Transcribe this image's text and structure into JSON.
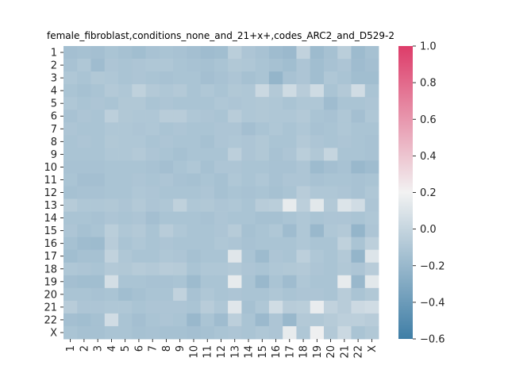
{
  "chart_data": {
    "type": "heatmap",
    "title": "female_fibroblast,conditions_none_and_21+x+,codes_ARC2_and_D529-2",
    "xlabel": "",
    "ylabel": "",
    "x_categories": [
      "1",
      "2",
      "3",
      "4",
      "5",
      "6",
      "7",
      "8",
      "9",
      "10",
      "11",
      "12",
      "13",
      "14",
      "15",
      "16",
      "17",
      "18",
      "19",
      "20",
      "21",
      "22",
      "X"
    ],
    "y_categories": [
      "1",
      "2",
      "3",
      "4",
      "5",
      "6",
      "7",
      "8",
      "9",
      "10",
      "11",
      "12",
      "13",
      "14",
      "15",
      "16",
      "17",
      "18",
      "19",
      "20",
      "21",
      "22",
      "X"
    ],
    "colorbar": {
      "vmin": -0.6,
      "vmax": 1.0,
      "ticks": [
        "1.0",
        "0.8",
        "0.6",
        "0.4",
        "0.2",
        "0.0",
        "−0.2",
        "−0.4",
        "−0.6"
      ],
      "tick_values": [
        1.0,
        0.8,
        0.6,
        0.4,
        0.2,
        0.0,
        -0.2,
        -0.4,
        -0.6
      ],
      "colors": {
        "low": "#3f7ea6",
        "mid": "#f2f2f2",
        "high": "#dd3c69"
      }
    },
    "values": [
      [
        -0.15,
        -0.14,
        -0.15,
        -0.12,
        -0.14,
        -0.16,
        -0.13,
        -0.12,
        -0.13,
        -0.15,
        -0.17,
        -0.16,
        -0.05,
        -0.11,
        -0.13,
        -0.17,
        -0.19,
        -0.02,
        -0.18,
        -0.14,
        -0.05,
        -0.18,
        -0.14
      ],
      [
        -0.13,
        -0.1,
        -0.17,
        -0.11,
        -0.12,
        -0.11,
        -0.1,
        -0.1,
        -0.12,
        -0.13,
        -0.14,
        -0.12,
        -0.09,
        -0.1,
        -0.12,
        -0.14,
        -0.16,
        -0.11,
        -0.16,
        -0.13,
        -0.11,
        -0.17,
        -0.15
      ],
      [
        -0.1,
        -0.12,
        -0.09,
        -0.1,
        -0.12,
        -0.11,
        -0.12,
        -0.13,
        -0.12,
        -0.12,
        -0.15,
        -0.13,
        -0.11,
        -0.14,
        -0.12,
        -0.22,
        -0.13,
        -0.11,
        -0.16,
        -0.1,
        -0.12,
        -0.16,
        -0.16
      ],
      [
        -0.12,
        -0.14,
        -0.12,
        -0.08,
        -0.1,
        -0.03,
        -0.08,
        -0.1,
        -0.08,
        -0.12,
        -0.1,
        -0.12,
        -0.09,
        -0.1,
        0.02,
        -0.08,
        0.04,
        -0.06,
        0.04,
        -0.12,
        -0.08,
        0.05,
        -0.12
      ],
      [
        -0.1,
        -0.12,
        -0.11,
        -0.12,
        -0.09,
        -0.09,
        -0.12,
        -0.11,
        -0.12,
        -0.12,
        -0.12,
        -0.1,
        -0.11,
        -0.1,
        -0.09,
        -0.1,
        -0.12,
        -0.1,
        -0.1,
        -0.17,
        -0.12,
        -0.12,
        -0.11
      ],
      [
        -0.13,
        -0.11,
        -0.12,
        -0.04,
        -0.09,
        -0.1,
        -0.1,
        -0.06,
        -0.06,
        -0.1,
        -0.11,
        -0.12,
        -0.06,
        -0.1,
        -0.09,
        -0.1,
        -0.1,
        -0.08,
        -0.12,
        -0.13,
        -0.1,
        -0.15,
        -0.1
      ],
      [
        -0.11,
        -0.12,
        -0.12,
        -0.1,
        -0.1,
        -0.11,
        -0.1,
        -0.12,
        -0.11,
        -0.12,
        -0.12,
        -0.11,
        -0.11,
        -0.15,
        -0.12,
        -0.1,
        -0.12,
        -0.1,
        -0.13,
        -0.12,
        -0.1,
        -0.12,
        -0.12
      ],
      [
        -0.12,
        -0.11,
        -0.12,
        -0.09,
        -0.1,
        -0.1,
        -0.12,
        -0.11,
        -0.12,
        -0.12,
        -0.14,
        -0.11,
        -0.1,
        -0.11,
        -0.09,
        -0.12,
        -0.12,
        -0.08,
        -0.11,
        -0.12,
        -0.11,
        -0.12,
        -0.13
      ],
      [
        -0.12,
        -0.12,
        -0.12,
        -0.1,
        -0.1,
        -0.08,
        -0.11,
        -0.12,
        -0.14,
        -0.12,
        -0.12,
        -0.12,
        -0.04,
        -0.11,
        -0.09,
        -0.13,
        -0.11,
        -0.05,
        -0.09,
        0.0,
        -0.12,
        -0.12,
        -0.13
      ],
      [
        -0.13,
        -0.13,
        -0.13,
        -0.12,
        -0.12,
        -0.12,
        -0.13,
        -0.15,
        -0.12,
        -0.1,
        -0.14,
        -0.11,
        -0.11,
        -0.12,
        -0.12,
        -0.13,
        -0.13,
        -0.11,
        -0.18,
        -0.15,
        -0.13,
        -0.2,
        -0.17
      ],
      [
        -0.12,
        -0.15,
        -0.15,
        -0.12,
        -0.12,
        -0.11,
        -0.12,
        -0.11,
        -0.13,
        -0.14,
        -0.12,
        -0.14,
        -0.1,
        -0.12,
        -0.1,
        -0.13,
        -0.11,
        -0.11,
        -0.13,
        -0.12,
        -0.12,
        -0.13,
        -0.12
      ],
      [
        -0.14,
        -0.13,
        -0.13,
        -0.12,
        -0.12,
        -0.1,
        -0.11,
        -0.12,
        -0.12,
        -0.12,
        -0.11,
        -0.14,
        -0.12,
        -0.13,
        -0.12,
        -0.14,
        -0.12,
        -0.06,
        -0.1,
        -0.1,
        -0.11,
        -0.13,
        -0.1
      ],
      [
        -0.07,
        -0.1,
        -0.1,
        -0.09,
        -0.11,
        -0.08,
        -0.11,
        -0.1,
        -0.03,
        -0.1,
        -0.09,
        -0.11,
        -0.1,
        -0.12,
        -0.06,
        -0.05,
        0.15,
        -0.04,
        0.13,
        -0.08,
        0.1,
        0.05,
        -0.11
      ],
      [
        -0.12,
        -0.12,
        -0.13,
        -0.11,
        -0.12,
        -0.11,
        -0.15,
        -0.12,
        -0.12,
        -0.12,
        -0.13,
        -0.11,
        -0.12,
        -0.12,
        -0.14,
        -0.14,
        -0.12,
        -0.1,
        -0.12,
        -0.11,
        -0.11,
        -0.12,
        -0.1
      ],
      [
        -0.11,
        -0.14,
        -0.12,
        -0.05,
        -0.1,
        -0.08,
        -0.12,
        -0.06,
        -0.1,
        -0.12,
        -0.12,
        -0.11,
        -0.07,
        -0.14,
        -0.12,
        -0.1,
        -0.17,
        -0.1,
        -0.2,
        -0.1,
        -0.08,
        -0.22,
        -0.11
      ],
      [
        -0.14,
        -0.17,
        -0.18,
        -0.06,
        -0.12,
        -0.1,
        -0.12,
        -0.11,
        -0.12,
        -0.12,
        -0.12,
        -0.1,
        -0.11,
        -0.13,
        -0.12,
        -0.12,
        -0.12,
        -0.1,
        -0.12,
        -0.12,
        -0.03,
        -0.12,
        -0.04
      ],
      [
        -0.16,
        -0.14,
        -0.14,
        -0.02,
        -0.1,
        -0.12,
        -0.12,
        -0.1,
        -0.11,
        -0.14,
        -0.12,
        -0.12,
        0.12,
        -0.12,
        -0.18,
        -0.11,
        -0.12,
        -0.04,
        -0.1,
        -0.12,
        -0.08,
        -0.22,
        0.1
      ],
      [
        -0.1,
        -0.11,
        -0.12,
        -0.08,
        -0.09,
        -0.07,
        -0.08,
        -0.06,
        -0.07,
        -0.12,
        -0.1,
        -0.1,
        -0.08,
        -0.11,
        -0.12,
        -0.1,
        -0.09,
        -0.08,
        -0.11,
        -0.12,
        -0.09,
        -0.11,
        -0.06
      ],
      [
        -0.15,
        -0.16,
        -0.16,
        0.06,
        -0.12,
        -0.12,
        -0.13,
        -0.13,
        -0.12,
        -0.18,
        -0.12,
        -0.12,
        0.15,
        -0.12,
        -0.2,
        -0.12,
        -0.17,
        -0.1,
        -0.12,
        -0.12,
        0.15,
        -0.2,
        0.13
      ],
      [
        -0.12,
        -0.12,
        -0.13,
        -0.12,
        -0.16,
        -0.14,
        -0.12,
        -0.12,
        -0.02,
        -0.13,
        -0.1,
        -0.12,
        -0.11,
        -0.12,
        -0.12,
        -0.1,
        -0.12,
        -0.11,
        -0.11,
        -0.12,
        -0.06,
        -0.12,
        -0.09
      ],
      [
        -0.06,
        -0.11,
        -0.11,
        -0.1,
        -0.1,
        -0.12,
        -0.11,
        -0.11,
        -0.11,
        -0.12,
        -0.06,
        -0.1,
        0.12,
        -0.14,
        -0.1,
        0.05,
        -0.06,
        -0.05,
        0.16,
        -0.02,
        -0.06,
        0.03,
        0.05
      ],
      [
        -0.15,
        -0.16,
        -0.14,
        0.05,
        -0.12,
        -0.15,
        -0.12,
        -0.11,
        -0.12,
        -0.2,
        -0.12,
        -0.17,
        -0.04,
        -0.12,
        -0.19,
        -0.11,
        -0.2,
        -0.08,
        -0.09,
        -0.07,
        -0.04,
        -0.04,
        -0.06
      ],
      [
        -0.12,
        -0.14,
        -0.14,
        -0.12,
        -0.12,
        -0.14,
        -0.13,
        -0.14,
        -0.14,
        -0.15,
        -0.14,
        -0.12,
        -0.11,
        -0.12,
        -0.1,
        -0.11,
        0.15,
        -0.1,
        0.18,
        -0.08,
        0.02,
        -0.12,
        -0.09
      ]
    ]
  }
}
